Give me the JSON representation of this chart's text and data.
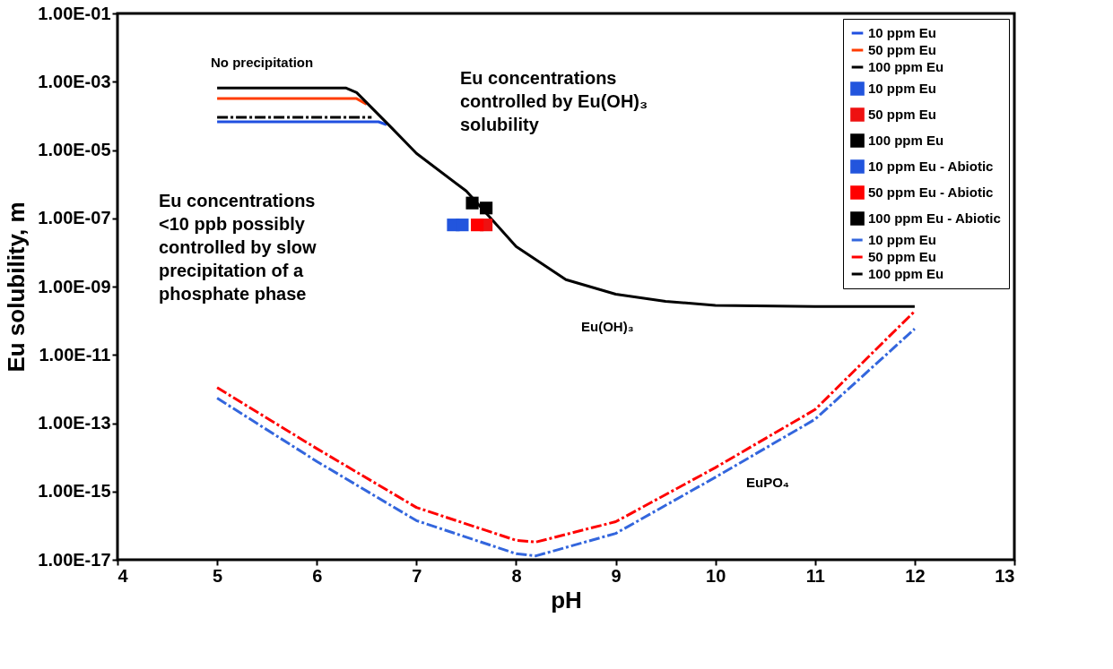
{
  "chart_data": {
    "type": "line",
    "xlabel": "pH",
    "ylabel": "Eu solubility, m",
    "xlim": [
      4,
      13
    ],
    "xticks": [
      4,
      5,
      6,
      7,
      8,
      9,
      10,
      11,
      12,
      13
    ],
    "ylim": [
      1e-17,
      0.1
    ],
    "log": "y",
    "yticks": [
      {
        "value": 1e-17,
        "label": "1.00E-17"
      },
      {
        "value": 1e-15,
        "label": "1.00E-15"
      },
      {
        "value": 1e-13,
        "label": "1.00E-13"
      },
      {
        "value": 1e-11,
        "label": "1.00E-11"
      },
      {
        "value": 1e-09,
        "label": "1.00E-09"
      },
      {
        "value": 1e-07,
        "label": "1.00E-07"
      },
      {
        "value": 1e-05,
        "label": "1.00E-05"
      },
      {
        "value": 0.001,
        "label": "1.00E-03"
      },
      {
        "value": 0.1,
        "label": "1.00E-01"
      }
    ],
    "grid": false,
    "legend": "top right",
    "series": [
      {
        "name": "10 ppm Eu",
        "line_style": "solid",
        "marker": "none",
        "color": "#1f4fe0",
        "x": [
          5,
          6.62,
          6.7
        ],
        "values": [
          6.7e-05,
          6.7e-05,
          5.5e-05
        ]
      },
      {
        "name": "50 ppm Eu",
        "line_style": "solid",
        "marker": "none",
        "color": "#ff3c00",
        "x": [
          5,
          6.4,
          6.5
        ],
        "values": [
          0.00032,
          0.00032,
          0.00022
        ]
      },
      {
        "name": "100 ppm Eu",
        "line_style": "solid",
        "marker": "none",
        "color": "#000000",
        "x": [
          5,
          6.29,
          6.4,
          6.75,
          7.0,
          7.5,
          8.0,
          8.5,
          9.0,
          9.5,
          10,
          11,
          12
        ],
        "values": [
          0.00066,
          0.00066,
          0.00048,
          4.5e-05,
          8e-06,
          6.3e-07,
          1.5e-08,
          1.6e-09,
          6e-10,
          3.7e-10,
          2.8e-10,
          2.6e-10,
          2.6e-10
        ]
      },
      {
        "name": "10 ppm Eu",
        "type": "scatter",
        "marker": "square",
        "color": "#2255dd",
        "x": [
          7.37
        ],
        "values": [
          6.4e-08
        ]
      },
      {
        "name": "50 ppm Eu",
        "type": "scatter",
        "marker": "square",
        "color": "#ee1111",
        "x": [
          7.7
        ],
        "values": [
          6.4e-08
        ]
      },
      {
        "name": "100 ppm Eu",
        "type": "scatter",
        "marker": "square",
        "color": "#000000",
        "x": [
          7.56
        ],
        "values": [
          2.8e-07
        ]
      },
      {
        "name": "10 ppm Eu - Abiotic",
        "type": "scatter",
        "marker": "square",
        "color": "#2255dd",
        "x": [
          7.46
        ],
        "values": [
          6.4e-08
        ]
      },
      {
        "name": "50 ppm Eu - Abiotic",
        "type": "scatter",
        "marker": "square",
        "color": "#ff0000",
        "x": [
          7.61
        ],
        "values": [
          6.4e-08
        ]
      },
      {
        "name": "100 ppm Eu - Abiotic",
        "type": "scatter",
        "marker": "square",
        "color": "#000000",
        "x": [
          7.7
        ],
        "values": [
          2e-07
        ]
      },
      {
        "name": "10 ppm Eu",
        "line_style": "dashdot",
        "marker": "none",
        "color": "#3366dd",
        "x": [
          5,
          6,
          7,
          8,
          8.2,
          9,
          10,
          11,
          12
        ],
        "values": [
          5.4e-13,
          7.6e-15,
          1.4e-16,
          1.5e-17,
          1.3e-17,
          5.9e-17,
          2.6e-15,
          1.3e-13,
          5.8e-11
        ]
      },
      {
        "name": "50 ppm Eu",
        "line_style": "dashdot",
        "marker": "none",
        "color": "#ff0000",
        "x": [
          5,
          6,
          7,
          8,
          8.2,
          9,
          10,
          11,
          12
        ],
        "values": [
          1.1e-12,
          1.8e-14,
          3.4e-16,
          3.7e-17,
          3.3e-17,
          1.3e-16,
          5e-15,
          2.5e-13,
          1.9e-10
        ]
      },
      {
        "name": "100 ppm Eu",
        "line_style": "dashdot",
        "marker": "none",
        "color": "#000000",
        "x": [
          5,
          6.55
        ],
        "values": [
          9e-05,
          9e-05
        ]
      }
    ],
    "annotations": [
      "No precipitation",
      "Eu concentrations\ncontrolled by Eu(OH)₃\nsolubility",
      "Eu concentrations\n<10 ppb possibly\ncontrolled by slow\nprecipitation of a\nphosphate phase",
      "Eu(OH)₃",
      "EuPO₄"
    ]
  }
}
